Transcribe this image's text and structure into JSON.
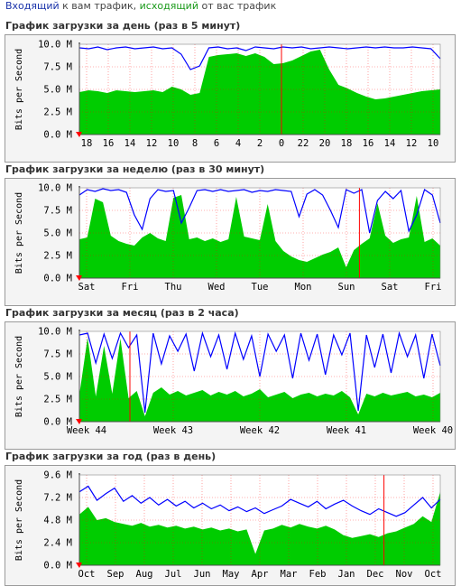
{
  "legend": {
    "in_word": "Входящий",
    "in_rest": " к вам трафик, ",
    "out_word": "исходящий",
    "out_rest": " от вас трафик"
  },
  "colors": {
    "in": "#0000ff",
    "out": "#00cc00",
    "marker": "#ff0000",
    "grid": "#ff0000",
    "plot_bg": "#ffffff",
    "panel_bg": "#f4f4f4"
  },
  "chart_data": [
    {
      "type": "area",
      "title": "График загрузки за день (раз в 5 минут)",
      "ylabel": "Bits per Second",
      "ylim": [
        0,
        10
      ],
      "yunit": "M",
      "yticks": [
        "10.0 M",
        "7.5 M",
        "5.0 M",
        "2.5 M",
        "0.0 M"
      ],
      "xticks": [
        "18",
        "16",
        "14",
        "12",
        "10",
        "8",
        "6",
        "4",
        "2",
        "0",
        "22",
        "20",
        "18",
        "16",
        "14",
        "12",
        "10"
      ],
      "marker_at": 9,
      "series": [
        {
          "name": "Входящий",
          "kind": "line",
          "values": [
            9.6,
            9.5,
            9.7,
            9.4,
            9.6,
            9.7,
            9.5,
            9.6,
            9.7,
            9.5,
            9.6,
            8.9,
            7.2,
            7.6,
            9.6,
            9.7,
            9.5,
            9.6,
            9.3,
            9.7,
            9.6,
            9.5,
            9.7,
            9.6,
            9.7,
            9.5,
            9.6,
            9.7,
            9.6,
            9.5,
            9.6,
            9.7,
            9.6,
            9.7,
            9.6,
            9.6,
            9.7,
            9.6,
            9.5,
            8.4
          ]
        },
        {
          "name": "исходящий",
          "kind": "area",
          "values": [
            4.7,
            4.9,
            4.8,
            4.6,
            4.9,
            4.8,
            4.7,
            4.8,
            4.9,
            4.7,
            5.3,
            5.0,
            4.4,
            4.6,
            8.6,
            8.8,
            8.9,
            9.0,
            8.7,
            9.0,
            8.6,
            7.8,
            7.9,
            8.2,
            8.7,
            9.2,
            9.4,
            7.2,
            5.5,
            5.1,
            4.6,
            4.2,
            3.9,
            4.0,
            4.2,
            4.4,
            4.6,
            4.8,
            4.9,
            5.0
          ]
        }
      ]
    },
    {
      "type": "area",
      "title": "График загрузки за неделю (раз в 30 минут)",
      "ylabel": "Bits per Second",
      "ylim": [
        0,
        10
      ],
      "yunit": "M",
      "yticks": [
        "10.0 M",
        "7.5 M",
        "5.0 M",
        "2.5 M",
        "0.0 M"
      ],
      "xticks": [
        "Sat",
        "Fri",
        "Thu",
        "Wed",
        "Tue",
        "Mon",
        "Sun",
        "Sat",
        "Fri"
      ],
      "marker_at": 6.3,
      "series": [
        {
          "name": "Входящий",
          "kind": "line",
          "values": [
            9.2,
            9.8,
            9.6,
            9.9,
            9.7,
            9.8,
            9.5,
            7.0,
            5.4,
            8.8,
            9.8,
            9.6,
            9.7,
            6.1,
            7.8,
            9.7,
            9.8,
            9.6,
            9.8,
            9.6,
            9.7,
            9.8,
            9.5,
            9.7,
            9.6,
            9.8,
            9.7,
            9.6,
            6.8,
            9.3,
            9.8,
            9.2,
            7.5,
            5.6,
            9.8,
            9.4,
            9.8,
            5.0,
            8.6,
            9.6,
            8.8,
            9.7,
            5.2,
            7.0,
            9.8,
            9.2,
            6.1
          ]
        },
        {
          "name": "исходящий",
          "kind": "area",
          "values": [
            4.3,
            4.5,
            8.8,
            8.4,
            4.7,
            4.1,
            3.8,
            3.6,
            4.5,
            5.0,
            4.4,
            4.1,
            8.9,
            9.2,
            4.3,
            4.5,
            4.1,
            4.4,
            4.0,
            4.3,
            9.0,
            4.6,
            4.4,
            4.2,
            8.2,
            4.1,
            3.0,
            2.4,
            2.0,
            1.8,
            2.2,
            2.6,
            2.9,
            3.4,
            1.2,
            3.1,
            3.8,
            4.4,
            8.3,
            4.7,
            3.9,
            4.3,
            4.5,
            9.1,
            4.0,
            4.4,
            3.6
          ]
        }
      ]
    },
    {
      "type": "area",
      "title": "График загрузки за месяц (раз в 2 часа)",
      "ylabel": "Bits per Second",
      "ylim": [
        0,
        10
      ],
      "yunit": "M",
      "yticks": [
        "10.0 M",
        "7.5 M",
        "5.0 M",
        "2.5 M",
        "0.0 M"
      ],
      "xticks": [
        "Week 44",
        "Week 43",
        "Week 42",
        "Week 41",
        "Week 40"
      ],
      "marker_at": 0.5,
      "series": [
        {
          "name": "Входящий",
          "kind": "line",
          "values": [
            9.6,
            9.8,
            6.5,
            9.7,
            7.0,
            9.8,
            8.2,
            9.6,
            1.0,
            9.8,
            6.4,
            9.5,
            7.8,
            9.7,
            5.6,
            9.8,
            7.2,
            9.6,
            5.8,
            9.8,
            6.9,
            9.5,
            5.0,
            9.7,
            7.8,
            9.6,
            4.8,
            9.8,
            6.8,
            9.7,
            5.2,
            9.6,
            7.4,
            9.8,
            1.2,
            9.6,
            6.0,
            9.7,
            5.4,
            9.8,
            7.2,
            9.6,
            4.8,
            9.7,
            6.2
          ]
        },
        {
          "name": "исходящий",
          "kind": "area",
          "values": [
            3.0,
            9.3,
            2.8,
            8.4,
            3.1,
            9.2,
            2.6,
            3.4,
            0.6,
            3.2,
            3.8,
            3.0,
            3.4,
            2.9,
            3.2,
            3.5,
            2.9,
            3.3,
            3.0,
            3.4,
            2.8,
            3.1,
            3.6,
            2.7,
            3.0,
            3.3,
            2.6,
            3.0,
            3.2,
            2.8,
            3.1,
            2.9,
            3.4,
            2.7,
            0.8,
            3.1,
            2.8,
            3.2,
            2.9,
            3.1,
            3.3,
            2.8,
            3.0,
            2.7,
            3.2
          ]
        }
      ]
    },
    {
      "type": "area",
      "title": "График загрузки за год (раз в день)",
      "ylabel": "Bits per Second",
      "ylim": [
        0,
        9.6
      ],
      "yunit": "M",
      "yticks": [
        "9.6 M",
        "7.2 M",
        "4.8 M",
        "2.4 M",
        "0.0 M"
      ],
      "xticks": [
        "Oct",
        "Sep",
        "Aug",
        "Jul",
        "Jun",
        "May",
        "Apr",
        "Mar",
        "Feb",
        "Jan",
        "Dec",
        "Nov",
        "Oct"
      ],
      "marker_at": 10.3,
      "series": [
        {
          "name": "Входящий",
          "kind": "line",
          "values": [
            7.8,
            8.4,
            6.9,
            7.6,
            8.2,
            6.8,
            7.4,
            6.6,
            7.2,
            6.4,
            7.0,
            6.3,
            6.8,
            6.1,
            6.6,
            6.0,
            6.4,
            5.8,
            6.2,
            5.7,
            6.1,
            5.5,
            5.9,
            6.3,
            7.0,
            6.6,
            6.2,
            6.8,
            6.0,
            6.5,
            6.9,
            6.3,
            5.8,
            5.4,
            6.0,
            5.6,
            5.2,
            5.6,
            6.4,
            7.2,
            6.1,
            7.0
          ]
        },
        {
          "name": "исходящий",
          "kind": "area",
          "values": [
            5.4,
            6.2,
            4.8,
            5.0,
            4.6,
            4.4,
            4.2,
            4.5,
            4.1,
            4.3,
            4.0,
            4.2,
            3.9,
            4.1,
            3.8,
            4.0,
            3.7,
            3.9,
            3.6,
            3.8,
            1.2,
            3.7,
            3.9,
            4.3,
            4.0,
            4.4,
            4.1,
            3.9,
            4.2,
            3.8,
            3.2,
            2.9,
            3.1,
            3.3,
            3.0,
            3.4,
            3.6,
            4.0,
            4.4,
            5.2,
            4.6,
            7.8
          ]
        }
      ]
    }
  ]
}
